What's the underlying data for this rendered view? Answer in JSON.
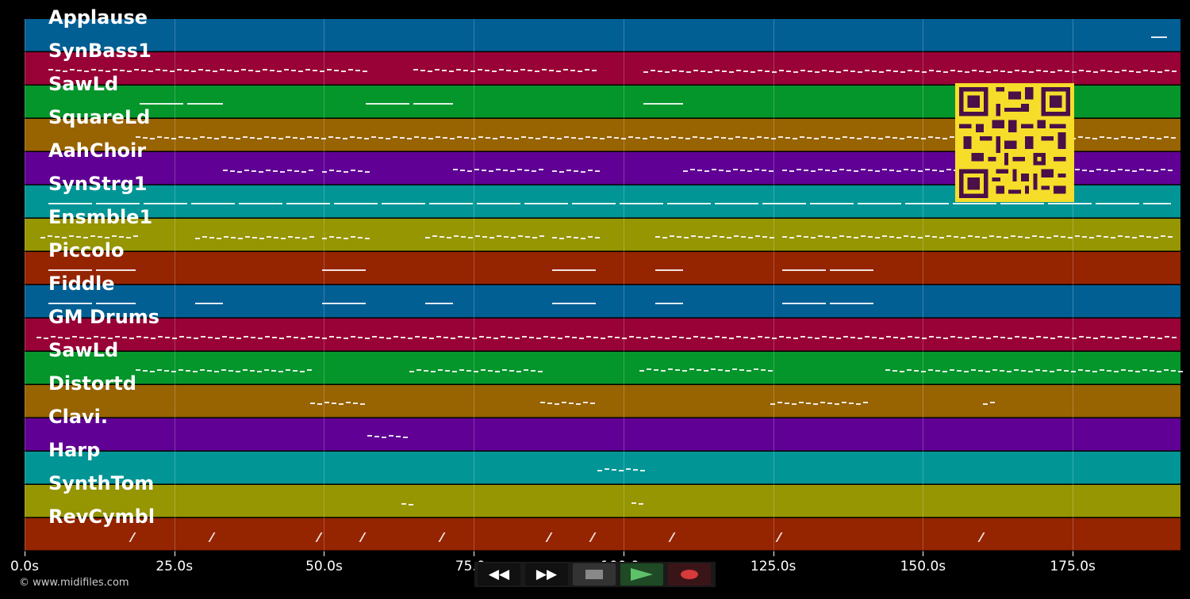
{
  "tracks": [
    {
      "name": "Applause",
      "color": "#015f94"
    },
    {
      "name": "SynBass1",
      "color": "#980236"
    },
    {
      "name": "SawLd",
      "color": "#04952b"
    },
    {
      "name": "SquareLd",
      "color": "#986301"
    },
    {
      "name": "AahChoir",
      "color": "#600095"
    },
    {
      "name": "SynStrg1",
      "color": "#019596"
    },
    {
      "name": "Ensmble1",
      "color": "#969502"
    },
    {
      "name": "Piccolo",
      "color": "#952401"
    },
    {
      "name": "Fiddle",
      "color": "#015f94"
    },
    {
      "name": "GM Drums",
      "color": "#980236"
    },
    {
      "name": "SawLd",
      "color": "#04952b"
    },
    {
      "name": "Distortd",
      "color": "#986301"
    },
    {
      "name": "Clavi.",
      "color": "#600095"
    },
    {
      "name": "Harp",
      "color": "#019596"
    },
    {
      "name": "SynthTom",
      "color": "#969502"
    },
    {
      "name": "RevCymbl",
      "color": "#952401"
    }
  ],
  "timeline": {
    "max_seconds": 193,
    "ticks": [
      {
        "label": "0.0s",
        "value": 0
      },
      {
        "label": "25.0s",
        "value": 25
      },
      {
        "label": "50.0s",
        "value": 50
      },
      {
        "label": "75.0s",
        "value": 75
      },
      {
        "label": "100.0s",
        "value": 100
      },
      {
        "label": "125.0s",
        "value": 125
      },
      {
        "label": "150.0s",
        "value": 150
      },
      {
        "label": "175.0s",
        "value": 175
      }
    ]
  },
  "transport": {
    "rewind": "◀◀",
    "forward": "▶▶",
    "stop": "stop-icon",
    "play": "play-icon",
    "record": "record-icon"
  },
  "footer": {
    "copyright": "© www.midifiles.com"
  }
}
